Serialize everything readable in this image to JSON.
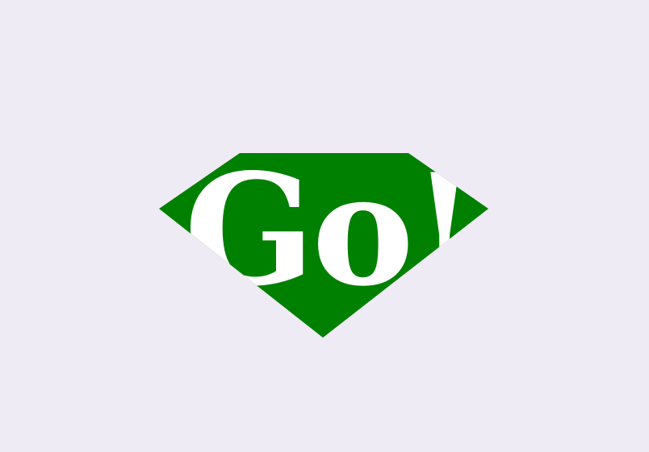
{
  "button": {
    "label": "Go!"
  },
  "colors": {
    "background": "#efebf4",
    "gem": "#008000",
    "text": "#ffffff"
  },
  "icons": {
    "shape": "diamond-gem-icon"
  }
}
